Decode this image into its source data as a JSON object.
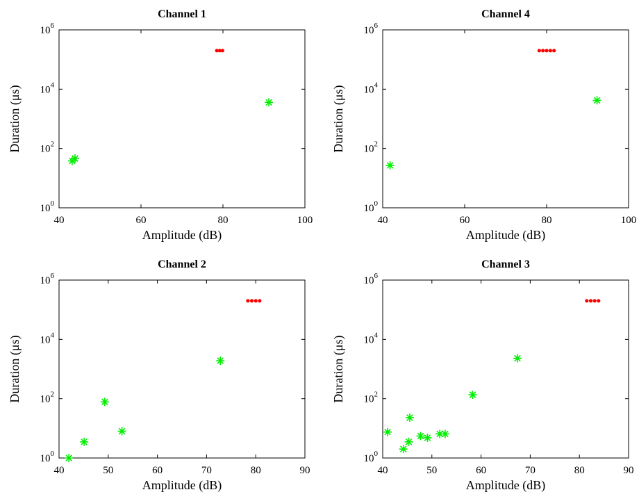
{
  "chart_data": [
    {
      "type": "scatter",
      "title": "Channel 1",
      "xlabel": "Amplitude (dB)",
      "ylabel": "Duration (μs)",
      "yscale": "log",
      "xlim": [
        40,
        100
      ],
      "ylim": [
        1,
        1000000
      ],
      "xticks": [
        "40",
        "60",
        "80",
        "100"
      ],
      "yticks": [
        {
          "value": 1,
          "base": "10",
          "exp": "0"
        },
        {
          "value": 100,
          "base": "10",
          "exp": "2"
        },
        {
          "value": 10000,
          "base": "10",
          "exp": "4"
        },
        {
          "value": 1000000,
          "base": "10",
          "exp": "6"
        }
      ],
      "grid": false,
      "series": [
        {
          "marker": "dot",
          "color": "#ff0000",
          "x": [
            78.5,
            79.2,
            79.9
          ],
          "y": [
            200000,
            200000,
            200000
          ]
        },
        {
          "marker": "star",
          "color": "#00ee00",
          "x": [
            43.2,
            43.9,
            91.2
          ],
          "y": [
            38,
            46,
            3600
          ]
        }
      ]
    },
    {
      "type": "scatter",
      "title": "Channel 4",
      "xlabel": "Amplitude (dB)",
      "ylabel": "Duration (μs)",
      "yscale": "log",
      "xlim": [
        40,
        100
      ],
      "ylim": [
        1,
        1000000
      ],
      "xticks": [
        "40",
        "60",
        "80",
        "100"
      ],
      "yticks": [
        {
          "value": 1,
          "base": "10",
          "exp": "0"
        },
        {
          "value": 100,
          "base": "10",
          "exp": "2"
        },
        {
          "value": 10000,
          "base": "10",
          "exp": "4"
        },
        {
          "value": 1000000,
          "base": "10",
          "exp": "6"
        }
      ],
      "grid": false,
      "series": [
        {
          "marker": "dot",
          "color": "#ff0000",
          "x": [
            78.2,
            79.1,
            80.0,
            80.9,
            81.8
          ],
          "y": [
            200000,
            200000,
            200000,
            200000,
            200000
          ]
        },
        {
          "marker": "star",
          "color": "#00ee00",
          "x": [
            41.8,
            92.3
          ],
          "y": [
            27,
            4200
          ]
        }
      ]
    },
    {
      "type": "scatter",
      "title": "Channel 2",
      "xlabel": "Amplitude (dB)",
      "ylabel": "Duration (μs)",
      "yscale": "log",
      "xlim": [
        40,
        90
      ],
      "ylim": [
        1,
        1000000
      ],
      "xticks": [
        "40",
        "50",
        "60",
        "70",
        "80",
        "90"
      ],
      "yticks": [
        {
          "value": 1,
          "base": "10",
          "exp": "0"
        },
        {
          "value": 100,
          "base": "10",
          "exp": "2"
        },
        {
          "value": 10000,
          "base": "10",
          "exp": "4"
        },
        {
          "value": 1000000,
          "base": "10",
          "exp": "6"
        }
      ],
      "grid": false,
      "series": [
        {
          "marker": "dot",
          "color": "#ff0000",
          "x": [
            78.4,
            79.2,
            80.0,
            80.8
          ],
          "y": [
            200000,
            200000,
            200000,
            200000
          ]
        },
        {
          "marker": "star",
          "color": "#00ee00",
          "x": [
            42.0,
            45.1,
            49.3,
            52.8,
            72.8
          ],
          "y": [
            1,
            3.5,
            78,
            8,
            1900
          ]
        }
      ]
    },
    {
      "type": "scatter",
      "title": "Channel 3",
      "xlabel": "Amplitude (dB)",
      "ylabel": "Duration (μs)",
      "yscale": "log",
      "xlim": [
        40,
        90
      ],
      "ylim": [
        1,
        1000000
      ],
      "xticks": [
        "40",
        "50",
        "60",
        "70",
        "80",
        "90"
      ],
      "yticks": [
        {
          "value": 1,
          "base": "10",
          "exp": "0"
        },
        {
          "value": 100,
          "base": "10",
          "exp": "2"
        },
        {
          "value": 10000,
          "base": "10",
          "exp": "4"
        },
        {
          "value": 1000000,
          "base": "10",
          "exp": "6"
        }
      ],
      "grid": false,
      "series": [
        {
          "marker": "dot",
          "color": "#ff0000",
          "x": [
            81.5,
            82.3,
            83.1,
            83.9
          ],
          "y": [
            200000,
            200000,
            200000,
            200000
          ]
        },
        {
          "marker": "star",
          "color": "#00ee00",
          "x": [
            41.0,
            44.2,
            45.3,
            45.5,
            47.7,
            49.1,
            51.6,
            52.7,
            58.3,
            67.4
          ],
          "y": [
            7.5,
            2,
            3.5,
            23,
            5.5,
            4.8,
            6.5,
            6.5,
            135,
            2300
          ]
        }
      ]
    }
  ]
}
